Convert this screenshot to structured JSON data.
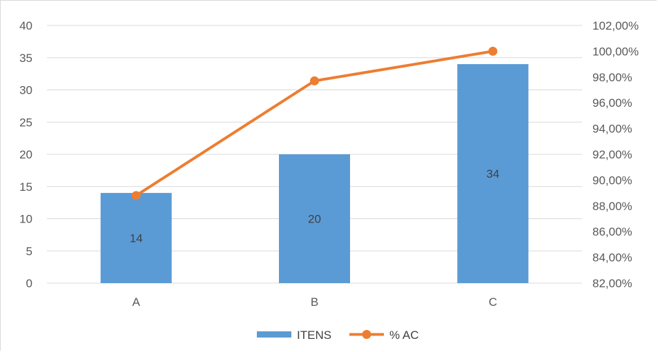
{
  "chart_data": {
    "type": "bar",
    "categories": [
      "A",
      "B",
      "C"
    ],
    "series": [
      {
        "name": "ITENS",
        "type": "bar",
        "axis": "left",
        "color": "#5B9BD5",
        "values": [
          14,
          20,
          34
        ],
        "data_labels": [
          "14",
          "20",
          "34"
        ]
      },
      {
        "name": "% AC",
        "type": "line",
        "axis": "right",
        "color": "#ED7D31",
        "values": [
          88.8,
          97.7,
          100.0
        ],
        "marker": "circle"
      }
    ],
    "y_left": {
      "min": 0,
      "max": 40,
      "step": 5,
      "tick_labels": [
        "0",
        "5",
        "10",
        "15",
        "20",
        "25",
        "30",
        "35",
        "40"
      ]
    },
    "y_right": {
      "min": 82,
      "max": 102,
      "step": 2,
      "tick_labels": [
        "82,00%",
        "84,00%",
        "86,00%",
        "88,00%",
        "90,00%",
        "92,00%",
        "94,00%",
        "96,00%",
        "98,00%",
        "100,00%",
        "102,00%"
      ]
    },
    "grid": true,
    "legend": {
      "position": "bottom",
      "entries": [
        "ITENS",
        "% AC"
      ]
    },
    "colors": {
      "grid": "#d9d9d9",
      "axis_text": "#595959"
    }
  }
}
